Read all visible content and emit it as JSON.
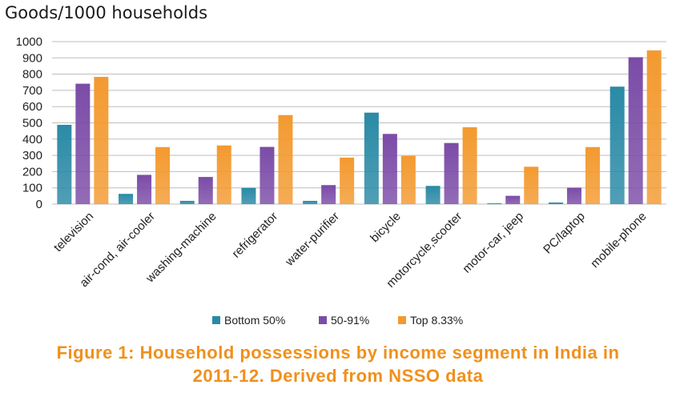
{
  "chart_data": {
    "type": "bar",
    "title": "Goods/1000 households",
    "categories": [
      "television",
      "air-cond, air-cooler",
      "washing-machine",
      "refrigerator",
      "water-purifier",
      "bicycle",
      "motorcycle,scooter",
      "motor-car, jeep",
      "PC/laptop",
      "mobile-phone"
    ],
    "series": [
      {
        "name": "Bottom 50%",
        "color": "#2a8aa6",
        "values": [
          488,
          63,
          20,
          100,
          20,
          563,
          112,
          5,
          10,
          723
        ]
      },
      {
        "name": "50-91%",
        "color": "#7b4ca7",
        "values": [
          741,
          180,
          167,
          352,
          117,
          432,
          376,
          51,
          101,
          904
        ]
      },
      {
        "name": "Top 8.33%",
        "color": "#f39a30",
        "values": [
          783,
          351,
          361,
          548,
          286,
          297,
          473,
          230,
          351,
          946
        ]
      }
    ],
    "yticks": [
      "0",
      "100",
      "200",
      "300",
      "400",
      "500",
      "600",
      "700",
      "800",
      "900",
      "1000"
    ],
    "ylim": [
      0,
      1000
    ],
    "grid": true,
    "legend": "bottom"
  },
  "caption": {
    "line1": "Figure 1: Household possessions by income segment in India in",
    "line2": "2011-12. Derived from NSSO data"
  }
}
